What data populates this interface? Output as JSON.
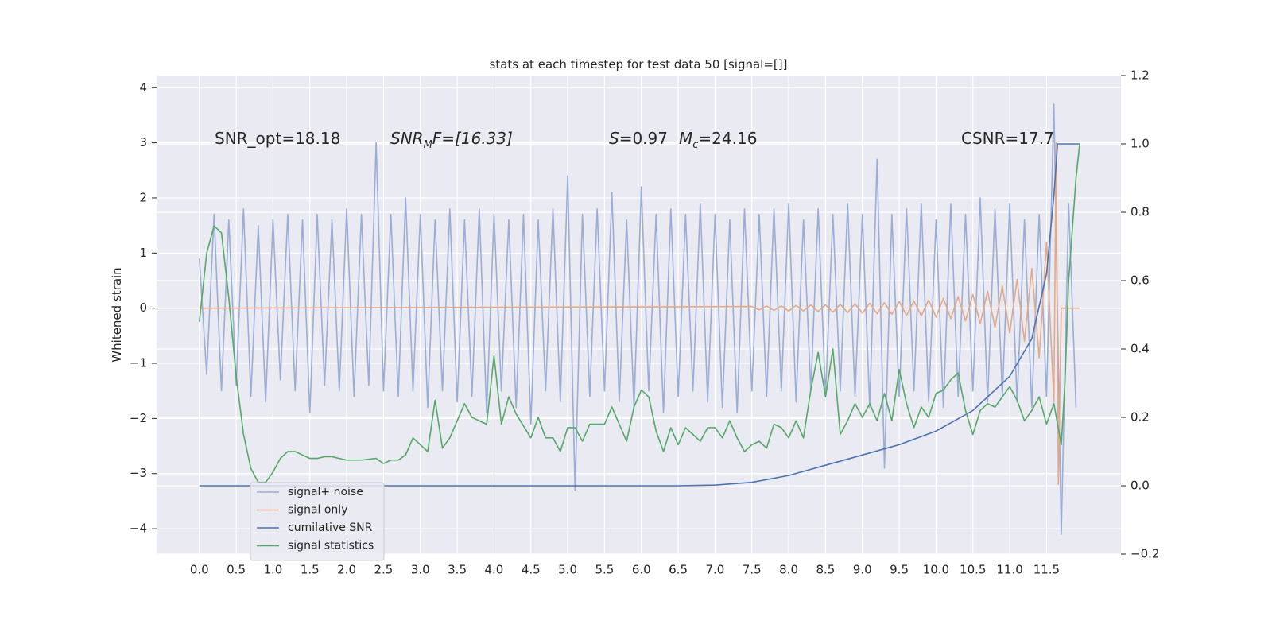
{
  "chart_data": {
    "type": "line",
    "title": "stats at each timestep for test data 50 [signal=[]]",
    "ylabel": "Whitened strain",
    "annotations": [
      [
        "SNR_opt=18.18"
      ],
      [
        "SNR",
        "M",
        "F=[16.33]"
      ],
      [
        "S",
        "=0.97",
        "M",
        "c",
        "=24.16"
      ],
      [
        "CSNR=17.7"
      ]
    ],
    "xlim": [
      -0.58,
      12.51
    ],
    "xticks": [
      {
        "value": 0,
        "label": "0.0"
      },
      0.5,
      {
        "value": 1,
        "label": "1.0"
      },
      1.5,
      {
        "value": 2,
        "label": "2.0"
      },
      2.5,
      {
        "value": 3,
        "label": "3.0"
      },
      3.5,
      {
        "value": 4,
        "label": "4.0"
      },
      4.5,
      {
        "value": 5,
        "label": "5.0"
      },
      5.5,
      {
        "value": 6,
        "label": "6.0"
      },
      6.5,
      {
        "value": 7,
        "label": "7.0"
      },
      7.5,
      {
        "value": 8,
        "label": "8.0"
      },
      8.5,
      {
        "value": 9,
        "label": "9.0"
      },
      9.5,
      {
        "value": 10,
        "label": "10.0"
      },
      10.5,
      {
        "value": 11,
        "label": "11.0"
      },
      11.5
    ],
    "ylim": [
      -4.46,
      4.22
    ],
    "yticks": [
      {
        "value": -4,
        "label": "−4"
      },
      {
        "value": -3,
        "label": "−3"
      },
      {
        "value": -2,
        "label": "−2"
      },
      {
        "value": -1,
        "label": "−1"
      },
      0,
      1,
      2,
      3,
      4
    ],
    "y2lim": [
      -0.2,
      1.2
    ],
    "y2ticks": [
      {
        "value": -0.2,
        "label": "−0.2"
      },
      {
        "value": 0,
        "label": "0.0"
      },
      0.2,
      0.4,
      0.6,
      0.8,
      {
        "value": 1,
        "label": "1.0"
      },
      1.2
    ],
    "grid": true,
    "legend": "lower left",
    "series": [
      {
        "name": "signal+ noise",
        "color": "#9aadd4",
        "x": [
          0,
          0.1,
          0.2,
          0.3,
          0.4,
          0.5,
          0.6,
          0.7,
          0.8,
          0.9,
          1,
          1.1,
          1.2,
          1.3,
          1.4,
          1.5,
          1.6,
          1.7,
          1.8,
          1.9,
          2,
          2.1,
          2.2,
          2.3,
          2.4,
          2.5,
          2.6,
          2.7,
          2.8,
          2.9,
          3,
          3.1,
          3.2,
          3.3,
          3.4,
          3.5,
          3.6,
          3.7,
          3.8,
          3.9,
          4,
          4.1,
          4.2,
          4.3,
          4.4,
          4.5,
          4.6,
          4.7,
          4.8,
          4.9,
          5,
          5.1,
          5.2,
          5.3,
          5.4,
          5.5,
          5.6,
          5.7,
          5.8,
          5.9,
          6,
          6.1,
          6.2,
          6.3,
          6.4,
          6.5,
          6.6,
          6.7,
          6.8,
          6.9,
          7,
          7.1,
          7.2,
          7.3,
          7.4,
          7.5,
          7.6,
          7.7,
          7.8,
          7.9,
          8,
          8.1,
          8.2,
          8.3,
          8.4,
          8.5,
          8.6,
          8.7,
          8.8,
          8.9,
          9,
          9.1,
          9.2,
          9.3,
          9.4,
          9.5,
          9.6,
          9.7,
          9.8,
          9.9,
          10,
          10.1,
          10.2,
          10.3,
          10.4,
          10.5,
          10.6,
          10.7,
          10.8,
          10.9,
          11,
          11.1,
          11.2,
          11.3,
          11.4,
          11.5,
          11.6,
          11.7,
          11.8,
          11.9
        ],
        "values": [
          0.9,
          -1.2,
          1.7,
          -1.5,
          1.6,
          -1.4,
          1.8,
          -1.6,
          1.5,
          -1.7,
          1.6,
          -1.3,
          1.7,
          -1.5,
          1.6,
          -1.9,
          1.7,
          -1.4,
          1.6,
          -1.5,
          1.8,
          -1.6,
          1.7,
          -1.4,
          3.0,
          -1.5,
          1.7,
          -1.6,
          2.0,
          -1.5,
          1.7,
          -1.8,
          1.6,
          -1.5,
          1.8,
          -1.7,
          1.6,
          -1.6,
          1.8,
          -1.9,
          1.7,
          -1.5,
          1.6,
          -1.8,
          1.7,
          -2.1,
          1.6,
          -1.5,
          1.8,
          -1.7,
          2.4,
          -3.3,
          1.7,
          -1.6,
          1.8,
          -1.5,
          2.1,
          -1.7,
          1.6,
          -1.8,
          2.2,
          -1.5,
          1.7,
          -1.9,
          1.8,
          -1.6,
          1.7,
          -1.5,
          1.9,
          -1.7,
          1.7,
          -1.8,
          1.6,
          -1.9,
          1.8,
          -1.5,
          1.7,
          -1.6,
          1.8,
          -1.5,
          1.9,
          -1.7,
          1.6,
          -1.5,
          1.8,
          -1.6,
          1.7,
          -1.5,
          1.9,
          -1.6,
          1.7,
          -1.8,
          2.7,
          -2.9,
          1.7,
          -1.6,
          1.8,
          -1.5,
          1.9,
          -1.7,
          1.6,
          -1.8,
          1.9,
          -1.6,
          1.7,
          -1.5,
          2.0,
          -1.7,
          1.8,
          -1.6,
          1.9,
          -1.7,
          1.6,
          -1.8,
          1.7,
          -1.6,
          3.7,
          -4.1,
          1.9,
          -1.8
        ]
      },
      {
        "name": "signal only",
        "color": "#e3a98a",
        "x": [
          0,
          7.5,
          7.6,
          7.7,
          7.8,
          7.9,
          8,
          8.1,
          8.2,
          8.3,
          8.4,
          8.5,
          8.6,
          8.7,
          8.8,
          8.9,
          9,
          9.1,
          9.2,
          9.3,
          9.4,
          9.5,
          9.6,
          9.7,
          9.8,
          9.9,
          10,
          10.1,
          10.2,
          10.3,
          10.4,
          10.5,
          10.6,
          10.7,
          10.8,
          10.9,
          11,
          11.1,
          11.2,
          11.3,
          11.4,
          11.5,
          11.6,
          11.63,
          11.66,
          11.7,
          11.95
        ],
        "values": [
          0,
          0.03,
          -0.03,
          0.04,
          -0.04,
          0.04,
          -0.05,
          0.05,
          -0.05,
          0.06,
          -0.06,
          0.06,
          -0.07,
          0.07,
          -0.08,
          0.08,
          -0.09,
          0.09,
          -0.1,
          0.1,
          -0.11,
          0.12,
          -0.13,
          0.13,
          -0.14,
          0.15,
          -0.16,
          0.18,
          -0.19,
          0.21,
          -0.23,
          0.25,
          -0.28,
          0.31,
          -0.35,
          0.4,
          -0.45,
          0.52,
          -0.6,
          0.72,
          -0.9,
          1.2,
          -1.7,
          3.0,
          -3.2,
          0,
          0
        ]
      },
      {
        "name": "cumilative SNR",
        "color": "#4c72b0",
        "axis": "y2",
        "x": [
          0,
          6.5,
          7,
          7.5,
          8,
          8.5,
          9,
          9.5,
          10,
          10.5,
          11,
          11.3,
          11.5,
          11.6,
          11.65,
          11.95
        ],
        "values": [
          0,
          0,
          0.002,
          0.01,
          0.03,
          0.06,
          0.09,
          0.12,
          0.16,
          0.22,
          0.32,
          0.43,
          0.62,
          0.85,
          1.0,
          1.0
        ]
      },
      {
        "name": "signal statistics",
        "color": "#55a868",
        "axis": "y2",
        "x": [
          0,
          0.1,
          0.2,
          0.3,
          0.4,
          0.5,
          0.6,
          0.7,
          0.8,
          0.9,
          1,
          1.1,
          1.2,
          1.3,
          1.4,
          1.5,
          1.6,
          1.7,
          1.8,
          1.9,
          2,
          2.2,
          2.4,
          2.5,
          2.6,
          2.7,
          2.8,
          2.9,
          3,
          3.1,
          3.2,
          3.3,
          3.4,
          3.6,
          3.7,
          3.9,
          4,
          4.1,
          4.2,
          4.3,
          4.5,
          4.6,
          4.7,
          4.8,
          4.9,
          5,
          5.1,
          5.2,
          5.3,
          5.5,
          5.6,
          5.7,
          5.8,
          5.9,
          6,
          6.1,
          6.2,
          6.3,
          6.4,
          6.5,
          6.6,
          6.7,
          6.8,
          6.9,
          7,
          7.1,
          7.2,
          7.3,
          7.4,
          7.5,
          7.6,
          7.7,
          7.8,
          7.9,
          8,
          8.1,
          8.2,
          8.3,
          8.4,
          8.5,
          8.6,
          8.7,
          8.8,
          8.9,
          9,
          9.1,
          9.2,
          9.3,
          9.4,
          9.5,
          9.6,
          9.7,
          9.8,
          9.9,
          10,
          10.1,
          10.2,
          10.3,
          10.4,
          10.5,
          10.6,
          10.7,
          10.8,
          10.9,
          11,
          11.1,
          11.2,
          11.3,
          11.4,
          11.5,
          11.6,
          11.7,
          11.75,
          11.8,
          11.9,
          11.95
        ],
        "values": [
          0.48,
          0.68,
          0.76,
          0.74,
          0.55,
          0.32,
          0.15,
          0.05,
          0.01,
          0.01,
          0.04,
          0.08,
          0.1,
          0.1,
          0.09,
          0.08,
          0.08,
          0.085,
          0.085,
          0.08,
          0.075,
          0.075,
          0.08,
          0.065,
          0.075,
          0.075,
          0.09,
          0.14,
          0.12,
          0.1,
          0.25,
          0.11,
          0.14,
          0.24,
          0.2,
          0.18,
          0.38,
          0.18,
          0.26,
          0.21,
          0.14,
          0.2,
          0.14,
          0.14,
          0.1,
          0.17,
          0.17,
          0.13,
          0.18,
          0.18,
          0.23,
          0.18,
          0.13,
          0.23,
          0.28,
          0.26,
          0.16,
          0.1,
          0.17,
          0.12,
          0.17,
          0.15,
          0.13,
          0.17,
          0.17,
          0.14,
          0.19,
          0.14,
          0.1,
          0.12,
          0.13,
          0.11,
          0.18,
          0.17,
          0.14,
          0.19,
          0.14,
          0.28,
          0.39,
          0.26,
          0.4,
          0.15,
          0.19,
          0.24,
          0.2,
          0.24,
          0.19,
          0.27,
          0.19,
          0.34,
          0.24,
          0.17,
          0.23,
          0.2,
          0.27,
          0.28,
          0.31,
          0.33,
          0.22,
          0.15,
          0.22,
          0.24,
          0.23,
          0.26,
          0.29,
          0.25,
          0.19,
          0.22,
          0.26,
          0.18,
          0.24,
          0.12,
          0.3,
          0.6,
          0.9,
          1.0
        ]
      }
    ]
  }
}
